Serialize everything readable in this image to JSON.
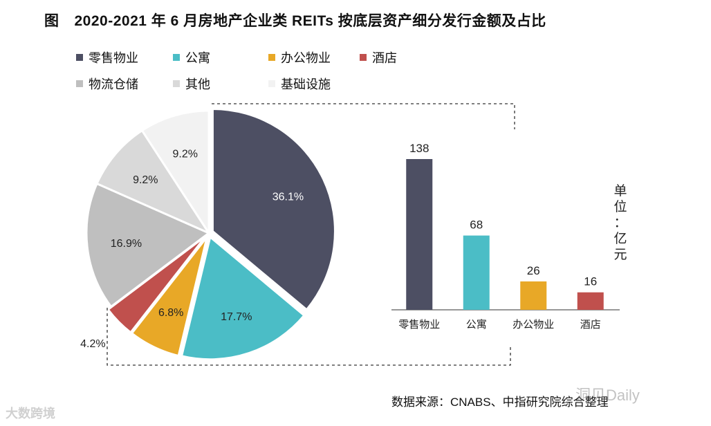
{
  "title": {
    "prefix": "图",
    "text": "2020-2021 年 6 月房地产企业类 REITs 按底层资产细分发行金额及占比"
  },
  "colors": {
    "retail": "#4d4f63",
    "apartment": "#4bbdc6",
    "office": "#e8a827",
    "hotel": "#c0504d",
    "warehouse": "#bfbfbf",
    "other": "#d9d9d9",
    "infrastructure": "#f2f2f2"
  },
  "chart_data": [
    {
      "type": "pie",
      "title": "",
      "slices": [
        {
          "label": "零售物业",
          "value": 36.1,
          "display": "36.1%",
          "color": "#4d4f63",
          "label_color": "#ffffff"
        },
        {
          "label": "公寓",
          "value": 17.7,
          "display": "17.7%",
          "color": "#4bbdc6",
          "label_color": "#222222"
        },
        {
          "label": "办公物业",
          "value": 6.8,
          "display": "6.8%",
          "color": "#e8a827",
          "label_color": "#222222"
        },
        {
          "label": "酒店",
          "value": 4.2,
          "display": "4.2%",
          "color": "#c0504d",
          "label_color": "#222222"
        },
        {
          "label": "物流仓储",
          "value": 16.9,
          "display": "16.9%",
          "color": "#bfbfbf",
          "label_color": "#222222"
        },
        {
          "label": "其他",
          "value": 9.2,
          "display": "9.2%",
          "color": "#d9d9d9",
          "label_color": "#222222"
        },
        {
          "label": "基础设施",
          "value": 9.2,
          "display": "9.2%",
          "color": "#f2f2f2",
          "label_color": "#222222"
        }
      ],
      "legend_position": "top",
      "legend": [
        "零售物业",
        "公寓",
        "办公物业",
        "酒店",
        "物流仓储",
        "其他",
        "基础设施"
      ]
    },
    {
      "type": "bar",
      "categories": [
        "零售物业",
        "公寓",
        "办公物业",
        "酒店"
      ],
      "values": [
        138,
        68,
        26,
        16
      ],
      "colors": [
        "#4d4f63",
        "#4bbdc6",
        "#e8a827",
        "#c0504d"
      ],
      "unit_label": "单位：亿元",
      "ylim": [
        0,
        150
      ],
      "grid": false
    }
  ],
  "source": "数据来源：CNABS、中指研究院综合整理",
  "watermarks": {
    "left": "大数跨境",
    "right": "洞见Daily"
  }
}
